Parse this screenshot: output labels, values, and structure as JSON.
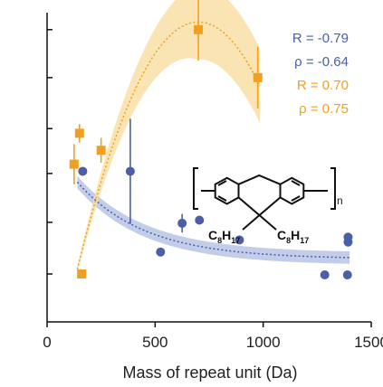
{
  "colors": {
    "blue": "#4a5fa6",
    "blue_band": "#b9c4e6",
    "orange": "#f0a020",
    "orange_band": "#f9dfa6",
    "axis": "#111111"
  },
  "chart_data": {
    "type": "scatter",
    "xlabel": "Mass of repeat unit (Da)",
    "xlim": [
      0,
      1500
    ],
    "x_ticks": [
      0,
      500,
      1000,
      1500
    ],
    "ylim": [
      0,
      1
    ],
    "y_tick_values": [
      0.155,
      0.322,
      0.48,
      0.625,
      0.79,
      0.945
    ],
    "y_tick_labels_visible": false,
    "grid": false,
    "series": [
      {
        "color": "blue",
        "marker": "circle",
        "points": [
          {
            "x": 165,
            "y": 0.487
          },
          {
            "x": 385,
            "y": 0.487,
            "err": 0.17
          },
          {
            "x": 525,
            "y": 0.226
          },
          {
            "x": 625,
            "y": 0.319,
            "err": 0.03
          },
          {
            "x": 705,
            "y": 0.329
          },
          {
            "x": 890,
            "y": 0.265
          },
          {
            "x": 1285,
            "y": 0.152
          },
          {
            "x": 1390,
            "y": 0.152
          },
          {
            "x": 1393,
            "y": 0.258
          },
          {
            "x": 1393,
            "y": 0.274
          }
        ],
        "fit": {
          "x": [
            140,
            1400
          ],
          "y": [
            0.452,
            0.208
          ],
          "band": 0.02,
          "style": "dotted"
        },
        "stats": [
          {
            "label": "R = -0.79"
          },
          {
            "label": "ρ = -0.64"
          }
        ]
      },
      {
        "color": "orange",
        "marker": "square",
        "points": [
          {
            "x": 125,
            "y": 0.51,
            "err": 0.065
          },
          {
            "x": 150,
            "y": 0.61,
            "err": 0.03
          },
          {
            "x": 160,
            "y": 0.155
          },
          {
            "x": 250,
            "y": 0.555,
            "err": 0.04
          },
          {
            "x": 700,
            "y": 0.945,
            "err": 0.1
          },
          {
            "x": 975,
            "y": 0.79,
            "err": 0.1
          }
        ],
        "fit": {
          "x": [
            140,
            985
          ],
          "peak_x": 700,
          "peak_y": 0.97,
          "y_at_start": 0.17,
          "band": 0.12,
          "style": "dotted"
        },
        "stats": [
          {
            "label": "R = 0.70"
          },
          {
            "label": "ρ = 0.75"
          }
        ]
      }
    ],
    "annotations": {
      "structure": "polyfluorene repeat unit",
      "substituent_left": {
        "base": "C",
        "sub1": "8",
        "mid": "H",
        "sub2": "17"
      },
      "substituent_right": {
        "base": "C",
        "sub1": "8",
        "mid": "H",
        "sub2": "17"
      },
      "subscript_n": "n"
    }
  }
}
